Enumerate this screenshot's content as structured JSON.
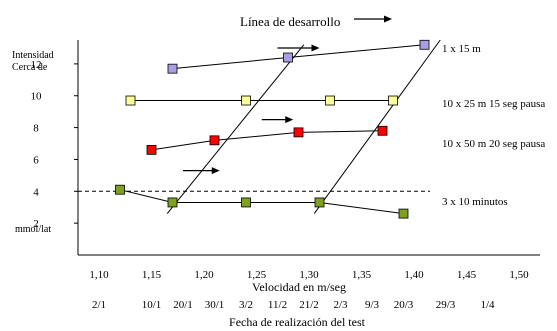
{
  "chart_data": {
    "type": "scatter",
    "title": "Línea de desarrollo",
    "xlabel": "Velocidad en m/seg",
    "xlabel2": "Fecha de realización del test",
    "ylabel": [
      "Intensidad",
      "Cerca de"
    ],
    "ylabel_unit": "mmol/lat",
    "xlim": [
      1.08,
      1.52
    ],
    "ylim": [
      0,
      13.5
    ],
    "x_ticks": [
      {
        "v": 1.1,
        "label": "1,10"
      },
      {
        "v": 1.15,
        "label": "1,15"
      },
      {
        "v": 1.2,
        "label": "1,20"
      },
      {
        "v": 1.25,
        "label": "1,25"
      },
      {
        "v": 1.3,
        "label": "1,30"
      },
      {
        "v": 1.35,
        "label": "1,35"
      },
      {
        "v": 1.4,
        "label": "1,40"
      },
      {
        "v": 1.45,
        "label": "1,45"
      },
      {
        "v": 1.5,
        "label": "1,50"
      }
    ],
    "date_ticks": [
      {
        "v": 1.1,
        "label": "2/1"
      },
      {
        "v": 1.15,
        "label": "10/1"
      },
      {
        "v": 1.18,
        "label": "20/1"
      },
      {
        "v": 1.21,
        "label": "30/1"
      },
      {
        "v": 1.24,
        "label": "3/2"
      },
      {
        "v": 1.27,
        "label": "11/2"
      },
      {
        "v": 1.3,
        "label": "21/2"
      },
      {
        "v": 1.33,
        "label": "2/3"
      },
      {
        "v": 1.36,
        "label": "9/3"
      },
      {
        "v": 1.39,
        "label": "20/3"
      },
      {
        "v": 1.43,
        "label": "29/3"
      },
      {
        "v": 1.47,
        "label": "1/4"
      }
    ],
    "y_ticks": [
      {
        "v": 2,
        "label": "2"
      },
      {
        "v": 4,
        "label": "4"
      },
      {
        "v": 6,
        "label": "6"
      },
      {
        "v": 8,
        "label": "8"
      },
      {
        "v": 10,
        "label": "10"
      },
      {
        "v": 12,
        "label": "12"
      }
    ],
    "threshold": 4,
    "series": [
      {
        "name": "1 x 15 m",
        "color": "#a99ee6",
        "points": [
          [
            1.17,
            11.7
          ],
          [
            1.28,
            12.4
          ],
          [
            1.41,
            13.2
          ]
        ]
      },
      {
        "name": "10 x 25 m 15 seg pausa",
        "color": "#ffff99",
        "points": [
          [
            1.13,
            9.7
          ],
          [
            1.24,
            9.7
          ],
          [
            1.32,
            9.7
          ],
          [
            1.38,
            9.7
          ]
        ]
      },
      {
        "name": "10 x 50 m 20 seg pausa",
        "color": "#ff0000",
        "points": [
          [
            1.15,
            6.6
          ],
          [
            1.21,
            7.2
          ],
          [
            1.29,
            7.7
          ],
          [
            1.37,
            7.8
          ]
        ]
      },
      {
        "name": "3 x 10 minutos",
        "color": "#80a020",
        "points": [
          [
            1.12,
            4.1
          ],
          [
            1.17,
            3.3
          ],
          [
            1.24,
            3.3
          ],
          [
            1.31,
            3.3
          ],
          [
            1.39,
            2.6
          ]
        ]
      }
    ],
    "trend_lines": [
      {
        "from": [
          1.165,
          2.6
        ],
        "to": [
          1.295,
          13.2
        ]
      },
      {
        "from": [
          1.305,
          2.6
        ],
        "to": [
          1.425,
          13.5
        ]
      }
    ],
    "arrows": [
      {
        "from": [
          1.27,
          13.0
        ],
        "to": [
          1.31,
          13.0
        ]
      },
      {
        "from": [
          1.255,
          8.5
        ],
        "to": [
          1.285,
          8.5
        ]
      },
      {
        "from": [
          1.18,
          5.3
        ],
        "to": [
          1.215,
          5.3
        ]
      }
    ]
  }
}
